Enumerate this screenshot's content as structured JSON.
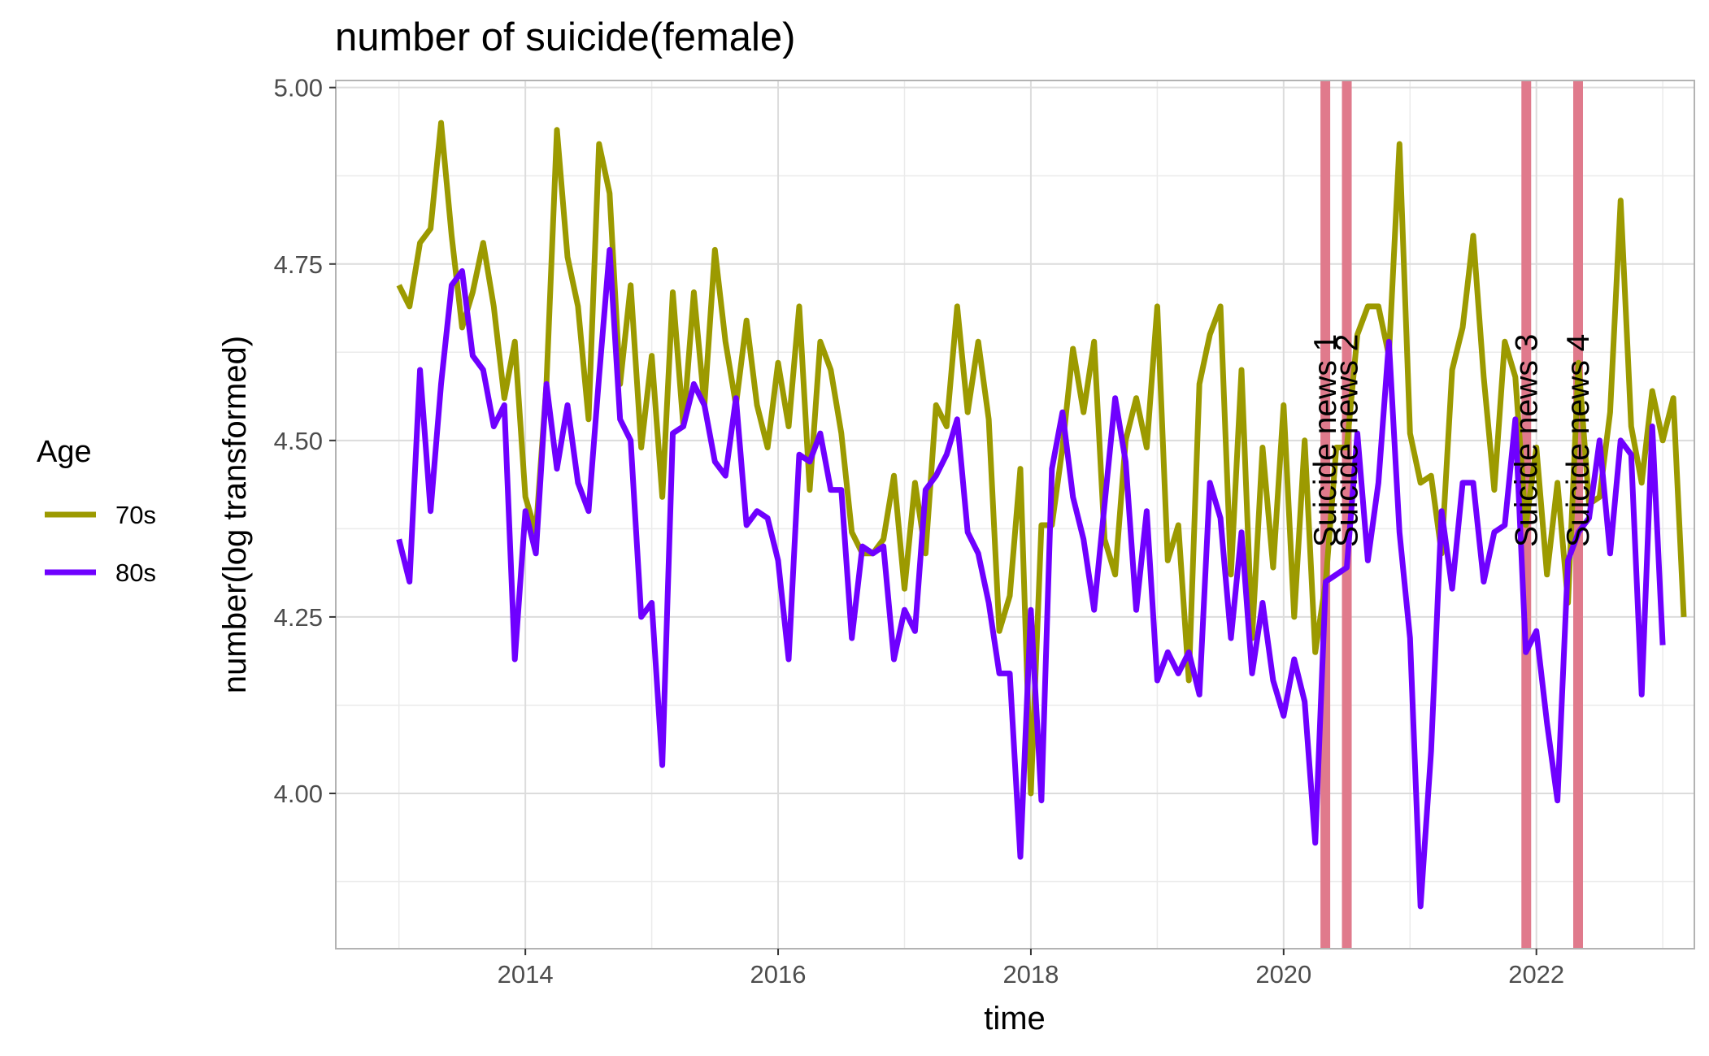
{
  "chart_data": {
    "type": "line",
    "title": "number of suicide(female)",
    "xlabel": "time",
    "ylabel": "number(log transformed)",
    "xlim": [
      2012.5,
      2023.25
    ],
    "ylim": [
      3.78,
      5.01
    ],
    "x_ticks": [
      2014,
      2016,
      2018,
      2020,
      2022
    ],
    "y_ticks": [
      4.0,
      4.25,
      4.5,
      4.75,
      5.0
    ],
    "y_tick_labels": [
      "4.00",
      "4.25",
      "4.50",
      "4.75",
      "5.00"
    ],
    "grid": true,
    "legend": {
      "title": "Age",
      "placement": "left"
    },
    "x_start": 2013.0,
    "x_step_months": 1,
    "series": [
      {
        "name": "70s",
        "color": "#9c9a00",
        "values": [
          4.72,
          4.69,
          4.78,
          4.8,
          4.95,
          4.79,
          4.66,
          4.71,
          4.78,
          4.69,
          4.56,
          4.64,
          4.42,
          4.37,
          4.58,
          4.94,
          4.76,
          4.69,
          4.53,
          4.92,
          4.85,
          4.58,
          4.72,
          4.49,
          4.62,
          4.42,
          4.71,
          4.52,
          4.71,
          4.55,
          4.77,
          4.64,
          4.55,
          4.67,
          4.55,
          4.49,
          4.61,
          4.52,
          4.69,
          4.43,
          4.64,
          4.6,
          4.51,
          4.37,
          4.34,
          4.34,
          4.36,
          4.45,
          4.29,
          4.44,
          4.34,
          4.55,
          4.52,
          4.69,
          4.54,
          4.64,
          4.53,
          4.23,
          4.28,
          4.46,
          4.0,
          4.38,
          4.38,
          4.49,
          4.63,
          4.54,
          4.64,
          4.36,
          4.31,
          4.5,
          4.56,
          4.49,
          4.69,
          4.33,
          4.38,
          4.16,
          4.58,
          4.65,
          4.69,
          4.31,
          4.6,
          4.22,
          4.49,
          4.32,
          4.55,
          4.25,
          4.5,
          4.2,
          4.3,
          4.49,
          4.49,
          4.65,
          4.69,
          4.69,
          4.62,
          4.92,
          4.51,
          4.44,
          4.45,
          4.34,
          4.6,
          4.66,
          4.79,
          4.59,
          4.43,
          4.64,
          4.59,
          4.38,
          4.49,
          4.31,
          4.44,
          4.27,
          4.61,
          4.41,
          4.42,
          4.54,
          4.84,
          4.52,
          4.44,
          4.57,
          4.5,
          4.56,
          4.25
        ]
      },
      {
        "name": "80s",
        "color": "#6f00ff",
        "values": [
          4.36,
          4.3,
          4.6,
          4.4,
          4.58,
          4.72,
          4.74,
          4.62,
          4.6,
          4.52,
          4.55,
          4.19,
          4.4,
          4.34,
          4.58,
          4.46,
          4.55,
          4.44,
          4.4,
          4.59,
          4.77,
          4.53,
          4.5,
          4.25,
          4.27,
          4.04,
          4.51,
          4.52,
          4.58,
          4.55,
          4.47,
          4.45,
          4.56,
          4.38,
          4.4,
          4.39,
          4.33,
          4.19,
          4.48,
          4.47,
          4.51,
          4.43,
          4.43,
          4.22,
          4.35,
          4.34,
          4.35,
          4.19,
          4.26,
          4.23,
          4.43,
          4.45,
          4.48,
          4.53,
          4.37,
          4.34,
          4.27,
          4.17,
          4.17,
          3.91,
          4.26,
          3.99,
          4.46,
          4.54,
          4.42,
          4.36,
          4.26,
          4.41,
          4.56,
          4.47,
          4.26,
          4.4,
          4.16,
          4.2,
          4.17,
          4.2,
          4.14,
          4.44,
          4.39,
          4.22,
          4.37,
          4.17,
          4.27,
          4.16,
          4.11,
          4.19,
          4.13,
          3.93,
          4.3,
          4.31,
          4.32,
          4.51,
          4.33,
          4.44,
          4.64,
          4.37,
          4.22,
          3.84,
          4.06,
          4.4,
          4.29,
          4.44,
          4.44,
          4.3,
          4.37,
          4.38,
          4.53,
          4.2,
          4.23,
          4.1,
          3.99,
          4.33,
          4.37,
          4.39,
          4.5,
          4.34,
          4.5,
          4.48,
          4.14,
          4.52,
          4.21
        ]
      }
    ],
    "vlines": [
      {
        "x": 2020.33,
        "label": "Suicide news 1",
        "color": "#e07a8c"
      },
      {
        "x": 2020.5,
        "label": "Suicide news 2",
        "color": "#e07a8c"
      },
      {
        "x": 2021.92,
        "label": "Suicide news 3",
        "color": "#e07a8c"
      },
      {
        "x": 2022.33,
        "label": "Suicide news 4",
        "color": "#e07a8c"
      }
    ]
  }
}
